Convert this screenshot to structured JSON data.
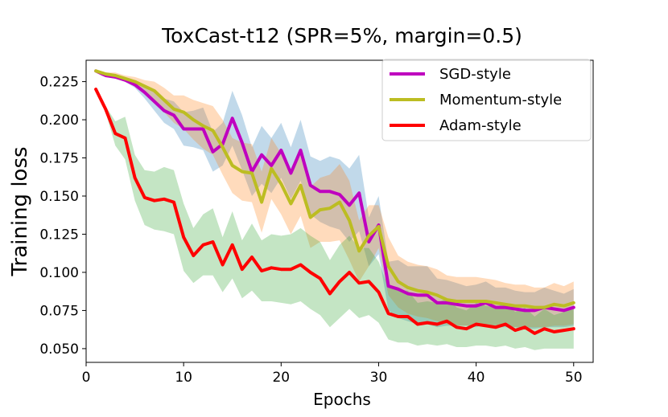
{
  "chart_data": {
    "type": "line",
    "title": "ToxCast-t12 (SPR=5%, margin=0.5)",
    "xlabel": "Epochs",
    "ylabel": "Training loss",
    "xlim": [
      0,
      52
    ],
    "ylim": [
      0.041,
      0.239
    ],
    "xticks": [
      0,
      10,
      20,
      30,
      40,
      50
    ],
    "yticks": [
      0.05,
      0.075,
      0.1,
      0.125,
      0.15,
      0.175,
      0.2,
      0.225
    ],
    "xtick_labels": [
      "0",
      "10",
      "20",
      "30",
      "40",
      "50"
    ],
    "ytick_labels": [
      "0.050",
      "0.075",
      "0.100",
      "0.125",
      "0.150",
      "0.175",
      "0.200",
      "0.225"
    ],
    "legend_position": "top-right",
    "grid": false,
    "x": [
      1,
      2,
      3,
      4,
      5,
      6,
      7,
      8,
      9,
      10,
      11,
      12,
      13,
      14,
      15,
      16,
      17,
      18,
      19,
      20,
      21,
      22,
      23,
      24,
      25,
      26,
      27,
      28,
      29,
      30,
      31,
      32,
      33,
      34,
      35,
      36,
      37,
      38,
      39,
      40,
      41,
      42,
      43,
      44,
      45,
      46,
      47,
      48,
      49,
      50
    ],
    "series": [
      {
        "name": "SGD-style",
        "color": "#bf00bf",
        "band_color": "#1f77b4",
        "values": [
          0.232,
          0.229,
          0.228,
          0.226,
          0.223,
          0.218,
          0.212,
          0.206,
          0.203,
          0.194,
          0.194,
          0.194,
          0.179,
          0.184,
          0.201,
          0.185,
          0.166,
          0.177,
          0.17,
          0.18,
          0.165,
          0.18,
          0.157,
          0.153,
          0.153,
          0.151,
          0.144,
          0.152,
          0.12,
          0.131,
          0.091,
          0.089,
          0.086,
          0.085,
          0.085,
          0.08,
          0.08,
          0.079,
          0.078,
          0.078,
          0.08,
          0.077,
          0.077,
          0.076,
          0.075,
          0.075,
          0.077,
          0.076,
          0.075,
          0.077
        ],
        "band_low": [
          0.231,
          0.228,
          0.227,
          0.225,
          0.221,
          0.214,
          0.206,
          0.198,
          0.194,
          0.183,
          0.182,
          0.18,
          0.166,
          0.17,
          0.183,
          0.167,
          0.15,
          0.158,
          0.152,
          0.162,
          0.148,
          0.16,
          0.138,
          0.133,
          0.13,
          0.128,
          0.12,
          0.127,
          0.104,
          0.112,
          0.075,
          0.07,
          0.068,
          0.066,
          0.066,
          0.064,
          0.065,
          0.065,
          0.065,
          0.064,
          0.066,
          0.064,
          0.064,
          0.064,
          0.063,
          0.063,
          0.064,
          0.064,
          0.064,
          0.065
        ],
        "band_high": [
          0.233,
          0.23,
          0.229,
          0.227,
          0.225,
          0.222,
          0.218,
          0.214,
          0.212,
          0.205,
          0.206,
          0.208,
          0.192,
          0.198,
          0.219,
          0.203,
          0.182,
          0.196,
          0.188,
          0.198,
          0.182,
          0.2,
          0.176,
          0.173,
          0.176,
          0.174,
          0.168,
          0.177,
          0.136,
          0.15,
          0.107,
          0.108,
          0.104,
          0.104,
          0.104,
          0.096,
          0.095,
          0.093,
          0.091,
          0.092,
          0.094,
          0.09,
          0.09,
          0.088,
          0.087,
          0.087,
          0.09,
          0.088,
          0.086,
          0.089
        ]
      },
      {
        "name": "Momentum-style",
        "color": "#bcbd22",
        "band_color": "#ff7f0e",
        "values": [
          0.232,
          0.23,
          0.229,
          0.227,
          0.225,
          0.222,
          0.219,
          0.213,
          0.207,
          0.205,
          0.2,
          0.196,
          0.193,
          0.182,
          0.17,
          0.166,
          0.165,
          0.146,
          0.168,
          0.158,
          0.145,
          0.157,
          0.136,
          0.141,
          0.142,
          0.146,
          0.134,
          0.114,
          0.124,
          0.13,
          0.104,
          0.094,
          0.09,
          0.088,
          0.087,
          0.085,
          0.082,
          0.081,
          0.081,
          0.081,
          0.081,
          0.08,
          0.079,
          0.078,
          0.078,
          0.077,
          0.077,
          0.079,
          0.078,
          0.08
        ],
        "band_low": [
          0.231,
          0.229,
          0.227,
          0.225,
          0.222,
          0.218,
          0.213,
          0.205,
          0.198,
          0.194,
          0.187,
          0.181,
          0.177,
          0.164,
          0.152,
          0.147,
          0.146,
          0.126,
          0.148,
          0.138,
          0.125,
          0.137,
          0.116,
          0.12,
          0.12,
          0.121,
          0.108,
          0.094,
          0.104,
          0.116,
          0.085,
          0.077,
          0.073,
          0.071,
          0.07,
          0.068,
          0.066,
          0.065,
          0.065,
          0.065,
          0.066,
          0.065,
          0.065,
          0.064,
          0.064,
          0.064,
          0.064,
          0.065,
          0.065,
          0.066
        ],
        "band_high": [
          0.233,
          0.231,
          0.231,
          0.229,
          0.228,
          0.226,
          0.225,
          0.221,
          0.216,
          0.216,
          0.213,
          0.211,
          0.209,
          0.2,
          0.188,
          0.185,
          0.184,
          0.166,
          0.188,
          0.178,
          0.165,
          0.177,
          0.156,
          0.162,
          0.164,
          0.171,
          0.16,
          0.134,
          0.144,
          0.144,
          0.123,
          0.111,
          0.107,
          0.105,
          0.104,
          0.102,
          0.098,
          0.097,
          0.097,
          0.097,
          0.096,
          0.095,
          0.093,
          0.092,
          0.092,
          0.09,
          0.09,
          0.093,
          0.091,
          0.094
        ]
      },
      {
        "name": "Adam-style",
        "color": "#ff0000",
        "band_color": "#2ca02c",
        "values": [
          0.22,
          0.207,
          0.191,
          0.188,
          0.162,
          0.149,
          0.147,
          0.148,
          0.146,
          0.123,
          0.111,
          0.118,
          0.12,
          0.105,
          0.118,
          0.102,
          0.11,
          0.101,
          0.103,
          0.102,
          0.102,
          0.105,
          0.1,
          0.096,
          0.086,
          0.094,
          0.1,
          0.093,
          0.094,
          0.087,
          0.073,
          0.071,
          0.071,
          0.066,
          0.067,
          0.066,
          0.068,
          0.064,
          0.063,
          0.066,
          0.065,
          0.064,
          0.066,
          0.062,
          0.064,
          0.06,
          0.063,
          0.061,
          0.062,
          0.063
        ],
        "band_low": [
          0.219,
          0.205,
          0.183,
          0.174,
          0.147,
          0.131,
          0.128,
          0.127,
          0.125,
          0.101,
          0.093,
          0.098,
          0.098,
          0.087,
          0.096,
          0.083,
          0.088,
          0.081,
          0.081,
          0.08,
          0.079,
          0.081,
          0.076,
          0.072,
          0.064,
          0.07,
          0.076,
          0.07,
          0.072,
          0.067,
          0.056,
          0.054,
          0.054,
          0.052,
          0.053,
          0.052,
          0.053,
          0.051,
          0.051,
          0.052,
          0.052,
          0.051,
          0.052,
          0.05,
          0.051,
          0.049,
          0.05,
          0.05,
          0.05,
          0.05
        ],
        "band_high": [
          0.221,
          0.209,
          0.199,
          0.202,
          0.177,
          0.167,
          0.166,
          0.169,
          0.167,
          0.145,
          0.129,
          0.138,
          0.142,
          0.123,
          0.14,
          0.121,
          0.132,
          0.121,
          0.125,
          0.124,
          0.125,
          0.129,
          0.124,
          0.12,
          0.108,
          0.118,
          0.124,
          0.116,
          0.116,
          0.107,
          0.09,
          0.088,
          0.088,
          0.08,
          0.081,
          0.08,
          0.083,
          0.077,
          0.075,
          0.08,
          0.078,
          0.077,
          0.08,
          0.074,
          0.077,
          0.071,
          0.076,
          0.072,
          0.074,
          0.076
        ]
      }
    ]
  }
}
